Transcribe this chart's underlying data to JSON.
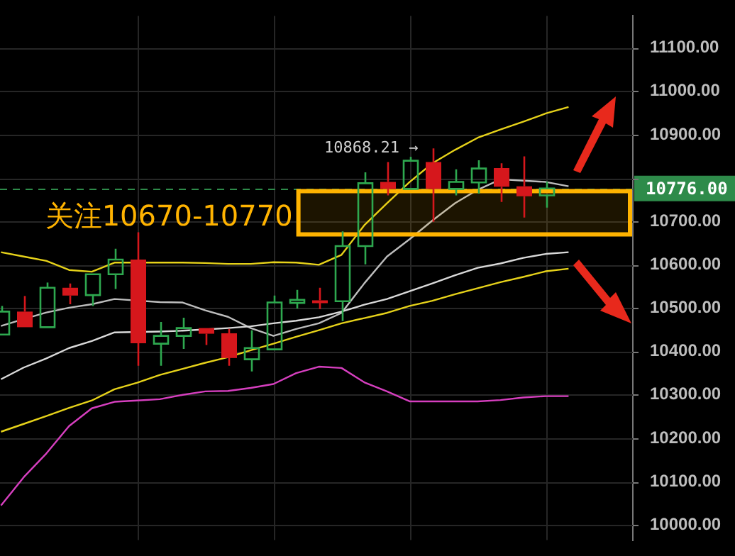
{
  "chart_data": {
    "type": "candlestick",
    "categories": [
      null,
      null,
      null,
      null,
      null,
      null,
      null,
      null,
      null,
      null,
      null,
      null,
      null,
      null,
      null,
      null,
      null,
      null,
      null,
      null,
      null,
      null,
      null,
      null,
      null,
      null
    ],
    "ohlc": [
      [
        10439,
        10505,
        10439,
        10492
      ],
      [
        10492,
        10528,
        10456,
        10456
      ],
      [
        10456,
        10559,
        10456,
        10547
      ],
      [
        10547,
        10557,
        10509,
        10529
      ],
      [
        10530,
        10578,
        10505,
        10578
      ],
      [
        10578,
        10637,
        10544,
        10612
      ],
      [
        10612,
        10675,
        10367,
        10419
      ],
      [
        10418,
        10468,
        10367,
        10436
      ],
      [
        10436,
        10478,
        10406,
        10454
      ],
      [
        10454,
        10454,
        10415,
        10441
      ],
      [
        10442,
        10452,
        10367,
        10385
      ],
      [
        10382,
        10449,
        10354,
        10408
      ],
      [
        10405,
        10529,
        10405,
        10513
      ],
      [
        10512,
        10542,
        10499,
        10519
      ],
      [
        10518,
        10547,
        10498,
        10517
      ],
      [
        10516,
        10677,
        10470,
        10643
      ],
      [
        10643,
        10813,
        10601,
        10788
      ],
      [
        10791,
        10837,
        10760,
        10775
      ],
      [
        10775,
        10849,
        10775,
        10840
      ],
      [
        10837,
        10868.21,
        10699,
        10775
      ],
      [
        10775,
        10820,
        10760,
        10791
      ],
      [
        10790,
        10841,
        10764,
        10822
      ],
      [
        10823,
        10834,
        10745,
        10780
      ],
      [
        10781,
        10850,
        10709,
        10758
      ],
      [
        10760,
        10792,
        10732,
        10776
      ],
      null
    ],
    "colors": [
      "#2ea84f",
      "#d6171c",
      "#2ea84f",
      "#d6171c",
      "#2ea84f",
      "#2ea84f",
      "#d6171c",
      "#2ea84f",
      "#2ea84f",
      "#d6171c",
      "#d6171c",
      "#2ea84f",
      "#2ea84f",
      "#2ea84f",
      "#d6171c",
      "#2ea84f",
      "#2ea84f",
      "#d6171c",
      "#2ea84f",
      "#d6171c",
      "#2ea84f",
      "#2ea84f",
      "#d6171c",
      "#d6171c",
      "#2ea84f",
      null
    ],
    "series": [
      {
        "type": "line",
        "color": "#e6d21a",
        "values": [
          10629,
          10619,
          10609,
          10588,
          10584,
          10605,
          null,
          10605,
          10605,
          10604,
          10602,
          10602,
          10606,
          10605,
          10600,
          10623,
          10691,
          10742,
          10791,
          10834,
          10865,
          10893,
          10912,
          10930,
          10949,
          10964
        ]
      },
      {
        "type": "line",
        "color": "#d9d9d9",
        "values": [
          10336,
          10363,
          10384,
          10408,
          10424,
          10444,
          null,
          10446,
          10448,
          10451,
          10454,
          10458,
          10465,
          10471,
          10479,
          10492,
          10508,
          10521,
          10539,
          10557,
          10576,
          10593,
          10603,
          10616,
          10625,
          10629
        ]
      },
      {
        "type": "line",
        "color": "#e6d21a",
        "values": [
          10215,
          10233,
          10251,
          10270,
          10287,
          10313,
          10328,
          10346,
          10360,
          10374,
          10387,
          10403,
          10418,
          10434,
          10449,
          10465,
          10477,
          10489,
          10505,
          10517,
          10532,
          10546,
          10560,
          10572,
          10585,
          10591
        ]
      },
      {
        "type": "line",
        "color": "#bdbdbd",
        "values": [
          10459,
          10475,
          10490,
          10501,
          10509,
          10521,
          null,
          10514,
          10513,
          10495,
          10480,
          10454,
          10436,
          10452,
          10465,
          10489,
          10557,
          10619,
          10659,
          10702,
          10742,
          10773,
          10797,
          10794,
          10791,
          10781
        ]
      },
      {
        "type": "line",
        "color": "#d63fbf",
        "values": [
          10045,
          10110,
          10165,
          10228,
          10269,
          10284,
          10287,
          10290,
          10300,
          10308,
          10309,
          10316,
          10325,
          10350,
          10365,
          10362,
          10329,
          10308,
          10285,
          10285,
          10285,
          10285,
          10288,
          10294,
          10297,
          10297
        ]
      }
    ],
    "ylim": [
      9965,
      11174
    ],
    "yticks": [
      {
        "value": 10000,
        "label": "10000.00"
      },
      {
        "value": 10100,
        "label": "10100.00"
      },
      {
        "value": 10200,
        "label": "10200.00"
      },
      {
        "value": 10300,
        "label": "10300.00"
      },
      {
        "value": 10400,
        "label": "10400.00"
      },
      {
        "value": 10500,
        "label": "10500.00"
      },
      {
        "value": 10600,
        "label": "10600.00"
      },
      {
        "value": 10700,
        "label": "10700.00"
      },
      {
        "value": 10800,
        "label": null
      },
      {
        "value": 10900,
        "label": "10900.00"
      },
      {
        "value": 11000,
        "label": "11000.00"
      },
      {
        "value": 11100,
        "label": "11100.00"
      }
    ],
    "ref_lines": [
      {
        "axis": "y",
        "value": 10776,
        "label": "10776.00",
        "color": "#2e8b4a",
        "line_style": "dashed"
      }
    ],
    "bands": [
      {
        "axis": "y",
        "from": 10670,
        "to": 10770,
        "label": "关注10670-10770",
        "color": "#ffb300"
      }
    ],
    "annotations": [
      "10868.21 →"
    ],
    "grid": true
  }
}
